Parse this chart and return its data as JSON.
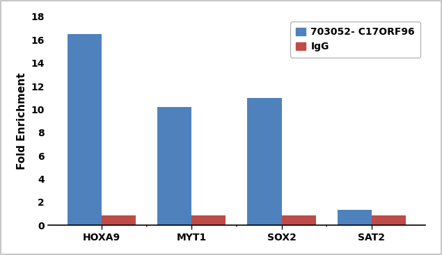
{
  "categories": [
    "HOXA9",
    "MYT1",
    "SOX2",
    "SAT2"
  ],
  "blue_values": [
    16.5,
    10.2,
    11.0,
    1.3
  ],
  "red_values": [
    0.85,
    0.85,
    0.85,
    0.85
  ],
  "blue_color": "#4F81BD",
  "red_color": "#BE4B48",
  "ylabel": "Fold Enrichment",
  "ylim": [
    0,
    18
  ],
  "yticks": [
    0,
    2,
    4,
    6,
    8,
    10,
    12,
    14,
    16,
    18
  ],
  "legend_blue": "703052- C17ORF96",
  "legend_red": "IgG",
  "bar_width": 0.38,
  "background_color": "#ffffff",
  "frame_color": "#c8c8c8",
  "ylabel_fontsize": 11,
  "tick_fontsize": 10,
  "legend_fontsize": 10
}
